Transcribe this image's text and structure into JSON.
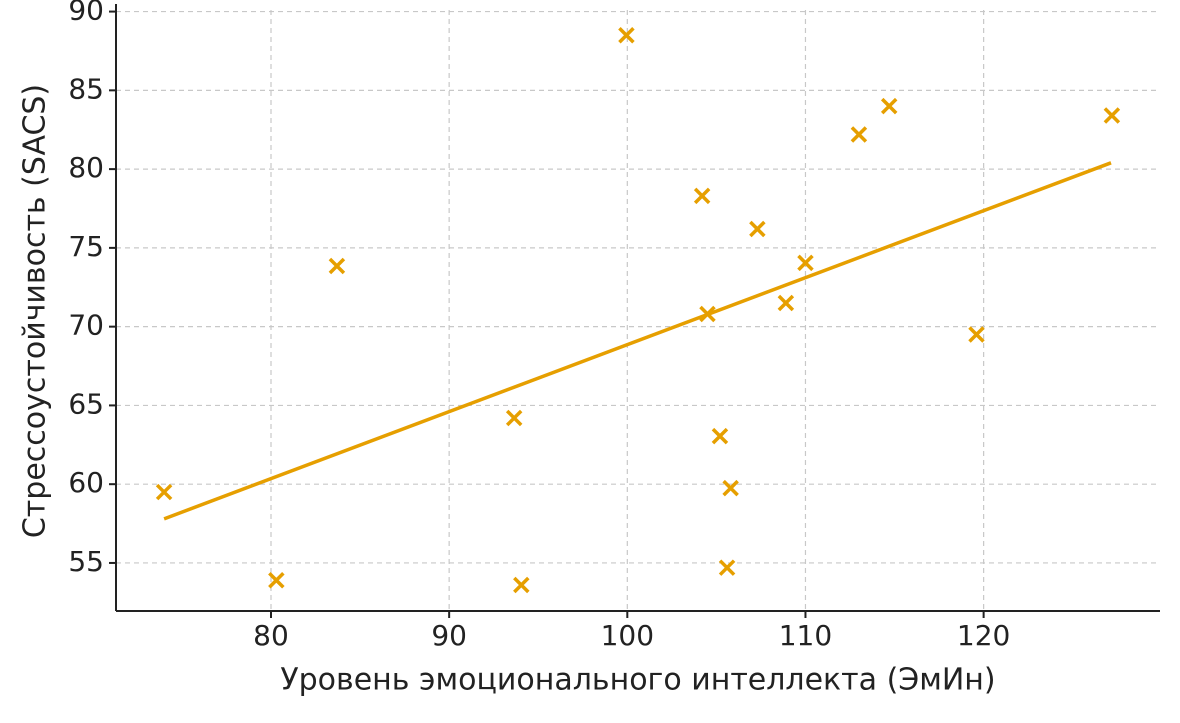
{
  "chart_data": {
    "type": "scatter",
    "xlabel": "Уровень эмоционального интеллекта (ЭмИн)",
    "ylabel": "Стрессоустойчивость (SACS)",
    "color": "#e69f00",
    "points": {
      "x": [
        74.0,
        80.3,
        83.7,
        93.65,
        94.05,
        99.95,
        104.2,
        104.5,
        105.2,
        105.6,
        105.8,
        107.3,
        108.9,
        110.0,
        113.0,
        114.7,
        119.6,
        127.2
      ],
      "y": [
        59.5,
        53.9,
        73.85,
        64.2,
        53.6,
        88.5,
        78.3,
        70.8,
        63.05,
        54.7,
        59.75,
        76.2,
        71.5,
        74.05,
        82.2,
        84.0,
        69.5,
        83.4
      ]
    },
    "trend_line": {
      "x": [
        74.0,
        127.15
      ],
      "y": [
        57.8,
        80.4
      ]
    },
    "xlim": [
      71.3,
      129.9
    ],
    "ylim": [
      51.95,
      90.1
    ],
    "xticks": [
      80,
      90,
      100,
      110,
      120
    ],
    "yticks": [
      55,
      60,
      65,
      70,
      75,
      80,
      85,
      90
    ],
    "grid": true
  }
}
